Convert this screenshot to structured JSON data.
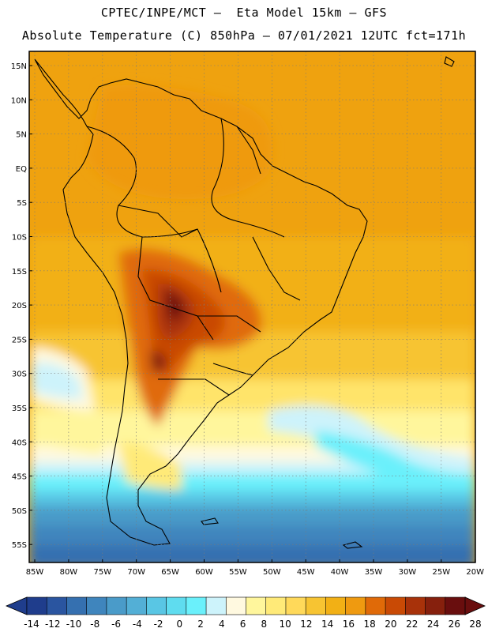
{
  "header": {
    "line1": "CPTEC/INPE/MCT –  Eta Model 15km – GFS",
    "line2": "Absolute Temperature (C) 850hPa – 07/01/2021 12UTC fct=171h"
  },
  "map": {
    "lat_labels": [
      "15N",
      "10N",
      "5N",
      "EQ",
      "5S",
      "10S",
      "15S",
      "20S",
      "25S",
      "30S",
      "35S",
      "40S",
      "45S",
      "50S",
      "55S"
    ],
    "lon_labels": [
      "85W",
      "80W",
      "75W",
      "70W",
      "65W",
      "60W",
      "55W",
      "50W",
      "45W",
      "40W",
      "35W",
      "30W",
      "25W",
      "20W"
    ]
  },
  "colorbar": {
    "ticks": [
      "-14",
      "-12",
      "-10",
      "-8",
      "-6",
      "-4",
      "-2",
      "0",
      "2",
      "4",
      "6",
      "8",
      "10",
      "12",
      "14",
      "16",
      "18",
      "20",
      "22",
      "24",
      "26",
      "28"
    ],
    "colors": [
      "#1f3d8c",
      "#2a55a0",
      "#3570b0",
      "#3f85bd",
      "#4a9bc9",
      "#53afd6",
      "#59c6e4",
      "#5fdcef",
      "#6af0fb",
      "#cdf3fb",
      "#fff9e0",
      "#fff69c",
      "#ffea78",
      "#ffd95a",
      "#f7c432",
      "#f2b015",
      "#ef9a10",
      "#e06a08",
      "#c94a05",
      "#a8320a",
      "#86200d",
      "#690e0e"
    ]
  }
}
